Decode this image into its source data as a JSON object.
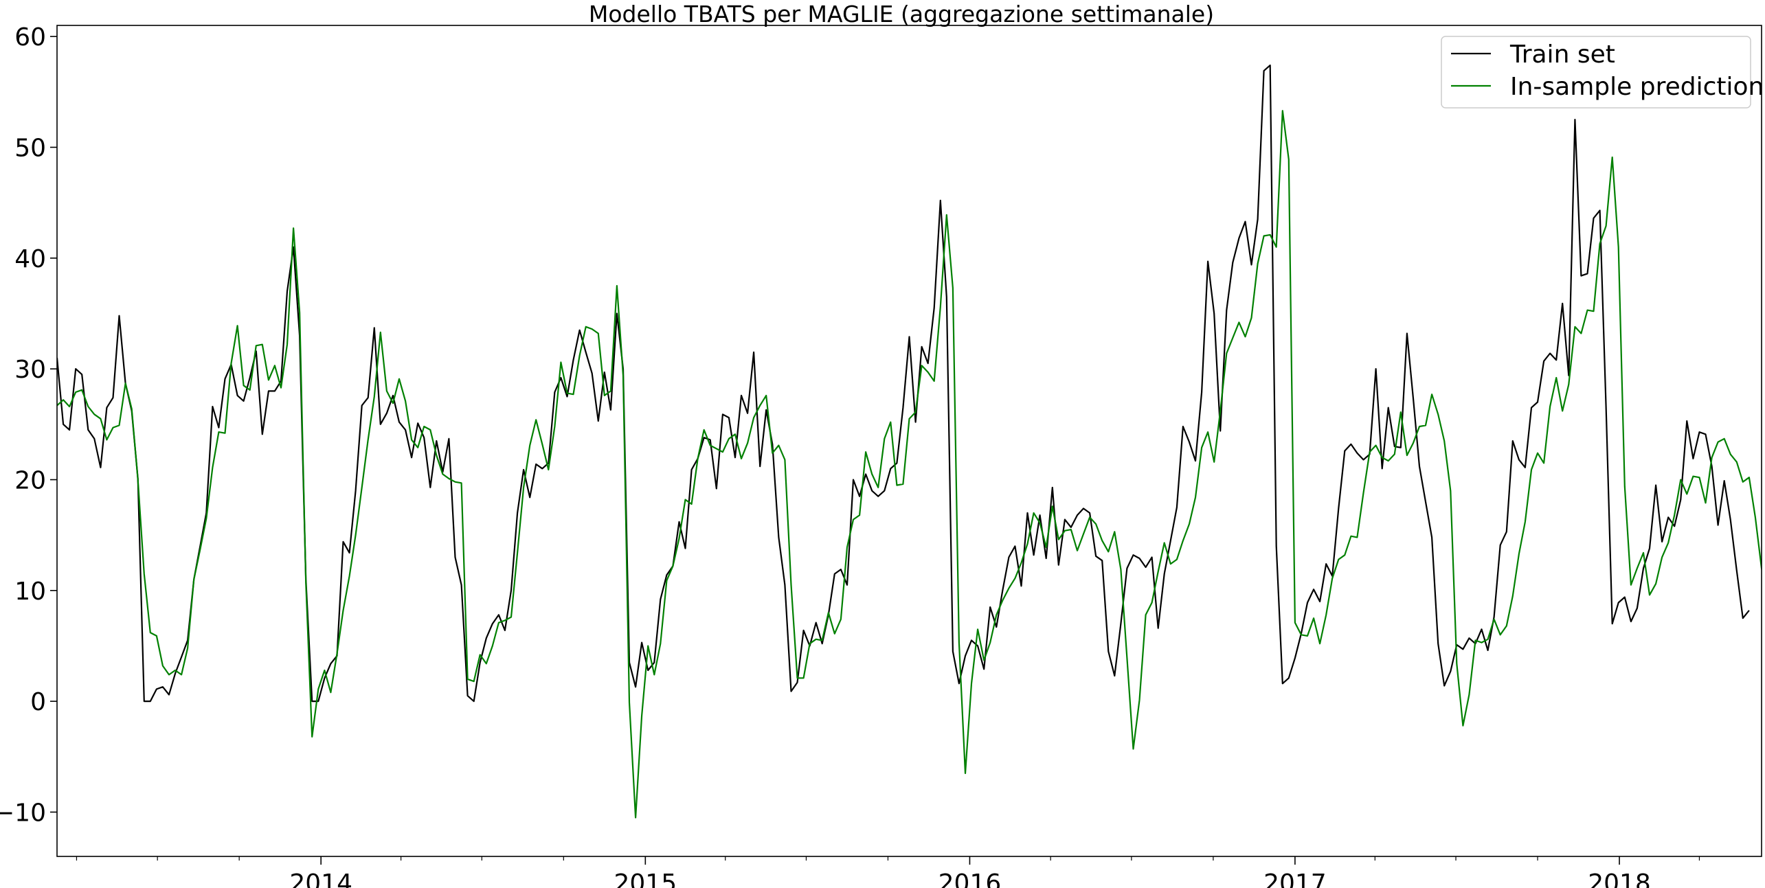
{
  "chart_data": {
    "type": "line",
    "title": "Modello TBATS per MAGLIE (aggregazione settimanale)",
    "xlabel": "",
    "ylabel": "",
    "x_start": "2013-03-10",
    "x_end": "2018-06-10",
    "x_frequency": "weekly",
    "xlim": [
      "2013-03-10",
      "2018-06-10"
    ],
    "ylim": [
      -14,
      61
    ],
    "x_ticks": [
      {
        "date": "2014-01-01",
        "label": "2014"
      },
      {
        "date": "2015-01-01",
        "label": "2015"
      },
      {
        "date": "2016-01-01",
        "label": "2016"
      },
      {
        "date": "2017-01-01",
        "label": "2017"
      },
      {
        "date": "2018-01-01",
        "label": "2018"
      }
    ],
    "y_ticks": [
      {
        "value": -10,
        "label": "−10"
      },
      {
        "value": 0,
        "label": "0"
      },
      {
        "value": 10,
        "label": "10"
      },
      {
        "value": 20,
        "label": "20"
      },
      {
        "value": 30,
        "label": "30"
      },
      {
        "value": 40,
        "label": "40"
      },
      {
        "value": 50,
        "label": "50"
      },
      {
        "value": 60,
        "label": "60"
      }
    ],
    "grid": false,
    "legend_position": "top-right",
    "series": [
      {
        "name": "Train set",
        "color": "#000000",
        "values": [
          31.0,
          25.0,
          24.5,
          30.0,
          29.5,
          24.5,
          23.7,
          21.1,
          26.5,
          27.4,
          34.8,
          28.7,
          26.2,
          20.1,
          0.0,
          0.0,
          1.1,
          1.3,
          0.6,
          2.5,
          4.0,
          5.5,
          11.0,
          14.0,
          17.0,
          26.6,
          24.7,
          29.1,
          30.4,
          27.6,
          27.1,
          29.2,
          31.6,
          24.1,
          28.0,
          28.0,
          28.9,
          37.0,
          41.0,
          33.0,
          11.0,
          0.0,
          0.0,
          2.1,
          3.4,
          4.1,
          14.4,
          13.4,
          19.0,
          26.7,
          27.4,
          33.7,
          25.0,
          26.0,
          27.6,
          25.2,
          24.5,
          22.0,
          25.1,
          23.8,
          19.3,
          23.5,
          20.7,
          23.7,
          13.0,
          10.5,
          0.5,
          0.0,
          3.5,
          5.7,
          7.0,
          7.8,
          6.4,
          10.0,
          17.0,
          20.9,
          18.4,
          21.4,
          21.0,
          21.5,
          27.9,
          29.2,
          27.5,
          30.8,
          33.5,
          31.5,
          29.6,
          25.3,
          29.7,
          26.3,
          35.0,
          30.0,
          3.5,
          1.3,
          5.3,
          2.8,
          3.5,
          9.2,
          11.4,
          12.2,
          16.2,
          13.8,
          20.9,
          21.9,
          23.8,
          23.6,
          19.2,
          25.9,
          25.6,
          22.0,
          27.6,
          26.0,
          31.5,
          21.2,
          26.3,
          23.2,
          14.8,
          10.5,
          0.9,
          1.7,
          6.4,
          5.0,
          7.1,
          5.2,
          7.8,
          11.5,
          11.9,
          10.5,
          20.0,
          18.5,
          20.5,
          19.0,
          18.5,
          19.0,
          21.0,
          21.5,
          26.5,
          32.9,
          25.2,
          32.0,
          30.5,
          35.5,
          45.2,
          36.5,
          4.5,
          1.6,
          4.1,
          5.5,
          5.0,
          2.9,
          8.5,
          6.7,
          10.0,
          13.0,
          14.0,
          10.4,
          17.0,
          13.2,
          16.8,
          12.9,
          19.3,
          12.3,
          16.4,
          15.7,
          16.8,
          17.4,
          17.0,
          13.1,
          12.7,
          4.5,
          2.3,
          7.0,
          12.0,
          13.2,
          12.9,
          12.1,
          13.0,
          6.6,
          11.5,
          14.5,
          17.5,
          24.8,
          23.4,
          21.7,
          27.9,
          39.7,
          35.0,
          24.4,
          35.3,
          39.6,
          41.8,
          43.3,
          39.4,
          43.5,
          56.9,
          57.4,
          14.0,
          1.6,
          2.1,
          3.9,
          6.1,
          8.9,
          10.1,
          9.0,
          12.4,
          11.3,
          17.4,
          22.6,
          23.2,
          22.4,
          21.8,
          22.3,
          30.0,
          21.0,
          26.5,
          23.0,
          22.9,
          33.2,
          27.4,
          21.2,
          18.0,
          14.8,
          5.2,
          1.4,
          2.7,
          5.1,
          4.7,
          5.7,
          5.2,
          6.5,
          4.6,
          7.6,
          14.1,
          15.3,
          23.5,
          21.8,
          21.1,
          26.5,
          27.0,
          30.7,
          31.4,
          30.8,
          35.9,
          29.4,
          52.5,
          38.4,
          38.6,
          43.6,
          44.3,
          26.6,
          7.0,
          8.9,
          9.4,
          7.2,
          8.4,
          12.0,
          13.8,
          19.5,
          14.4,
          16.6,
          15.8,
          18.2,
          25.3,
          21.9,
          24.3,
          24.1,
          21.2,
          15.9,
          19.9,
          16.4,
          11.8,
          7.5,
          8.2
        ]
      },
      {
        "name": "In-sample predictions",
        "color": "#008000",
        "values": [
          26.7,
          27.2,
          26.6,
          27.9,
          28.1,
          26.6,
          25.9,
          25.5,
          23.6,
          24.7,
          24.9,
          28.7,
          26.4,
          20.0,
          11.5,
          6.2,
          5.9,
          3.2,
          2.4,
          2.8,
          2.4,
          4.8,
          11.0,
          13.7,
          16.5,
          21.1,
          24.3,
          24.2,
          30.5,
          33.9,
          28.5,
          28.1,
          32.1,
          32.2,
          29.0,
          30.3,
          28.3,
          32.2,
          42.7,
          35.1,
          10.7,
          -3.2,
          1.1,
          2.8,
          0.8,
          4.3,
          8.2,
          11.3,
          15.0,
          19.3,
          23.6,
          27.5,
          33.3,
          28.0,
          26.9,
          29.1,
          27.1,
          23.6,
          22.9,
          24.8,
          24.5,
          22.2,
          20.5,
          20.1,
          19.8,
          19.7,
          2.0,
          1.8,
          4.2,
          3.4,
          5.0,
          7.1,
          7.3,
          7.6,
          13.4,
          19.3,
          23.1,
          25.4,
          23.2,
          20.9,
          24.8,
          30.6,
          27.8,
          27.7,
          31.2,
          33.8,
          33.6,
          33.2,
          27.6,
          28.0,
          37.5,
          29.4,
          -0.1,
          -10.5,
          -1.3,
          5.0,
          2.4,
          5.2,
          10.9,
          12.2,
          14.7,
          18.2,
          17.8,
          21.9,
          24.5,
          23.1,
          22.8,
          22.5,
          23.7,
          24.1,
          21.9,
          23.3,
          25.6,
          26.7,
          27.6,
          22.4,
          23.1,
          21.8,
          10.5,
          2.1,
          2.1,
          5.2,
          5.6,
          5.5,
          8.0,
          6.1,
          7.4,
          13.9,
          16.4,
          16.8,
          22.5,
          20.5,
          19.3,
          23.7,
          25.2,
          19.5,
          19.6,
          25.5,
          26.1,
          30.3,
          29.7,
          28.9,
          35.6,
          43.9,
          37.3,
          5.3,
          -6.5,
          1.6,
          6.5,
          3.7,
          5.3,
          7.8,
          9.1,
          10.2,
          11.1,
          12.5,
          14.2,
          17.0,
          16.1,
          13.9,
          17.6,
          14.6,
          15.4,
          15.5,
          13.6,
          15.1,
          16.6,
          16.0,
          14.5,
          13.5,
          15.3,
          11.9,
          3.9,
          -4.3,
          0.1,
          7.8,
          8.9,
          11.7,
          14.3,
          12.4,
          12.8,
          14.5,
          16.0,
          18.4,
          22.9,
          24.3,
          21.6,
          26.2,
          31.4,
          32.8,
          34.2,
          32.9,
          34.6,
          39.5,
          42.0,
          42.1,
          41.0,
          53.3,
          48.9,
          7.1,
          6.0,
          5.9,
          7.5,
          5.2,
          7.8,
          11.1,
          12.8,
          13.2,
          14.9,
          14.8,
          18.8,
          22.5,
          23.1,
          22.0,
          21.7,
          22.3,
          26.1,
          22.2,
          23.3,
          24.8,
          24.9,
          27.7,
          25.9,
          23.5,
          19.0,
          3.4,
          -2.2,
          0.6,
          5.5,
          5.3,
          5.6,
          7.4,
          6.0,
          6.8,
          9.5,
          13.3,
          16.2,
          20.9,
          22.4,
          21.5,
          26.6,
          29.2,
          26.2,
          28.6,
          33.8,
          33.2,
          35.3,
          35.2,
          41.3,
          42.9,
          49.1,
          41.0,
          19.4,
          10.5,
          12.0,
          13.4,
          9.6,
          10.6,
          13.0,
          14.3,
          16.8,
          20.0,
          18.7,
          20.3,
          20.2,
          17.9,
          22.0,
          23.4,
          23.7,
          22.3,
          21.6,
          19.8,
          20.2,
          16.6,
          12.0,
          9.5
        ]
      }
    ]
  }
}
